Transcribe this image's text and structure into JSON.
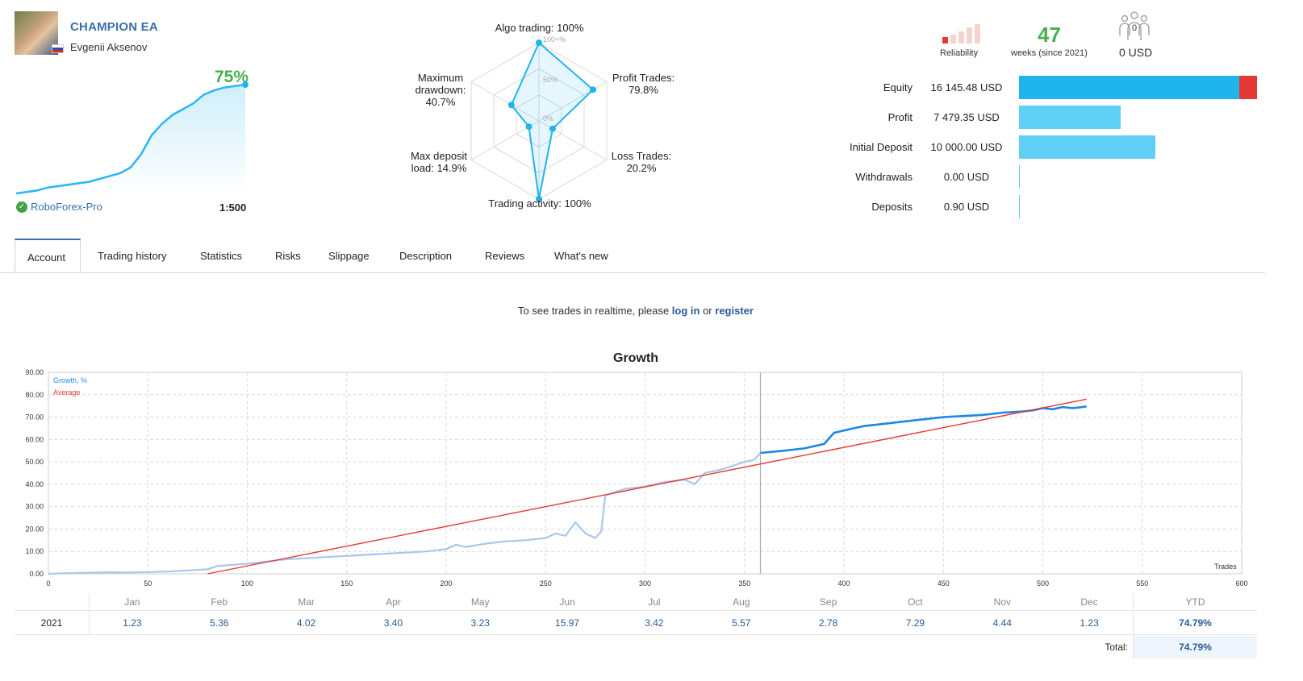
{
  "header": {
    "title": "CHAMPION EA",
    "author": "Evgenii Aksenov",
    "growth_pct": "75%",
    "broker": "RoboForex-Pro",
    "leverage": "1:500"
  },
  "mini_chart_growth": [
    0,
    1,
    2,
    4,
    5,
    6,
    7,
    8,
    10,
    12,
    14,
    18,
    27,
    40,
    48,
    54,
    58,
    62,
    68,
    71,
    73,
    74,
    75
  ],
  "radar": {
    "labels": {
      "algo": "Algo trading: 100%",
      "profit": [
        "Profit Trades:",
        "79.8%"
      ],
      "loss": [
        "Loss Trades:",
        "20.2%"
      ],
      "activity": "Trading activity: 100%",
      "deposit": [
        "Max deposit",
        "load: 14.9%"
      ],
      "drawdown": [
        "Maximum",
        "drawdown:",
        "40.7%"
      ]
    },
    "ring_labels": [
      "100+%",
      "50%",
      "0%"
    ],
    "values": [
      100,
      79.8,
      20.2,
      100,
      14.9,
      40.7
    ]
  },
  "stats": {
    "reliability_label": "Reliability",
    "weeks_value": "47",
    "weeks_label": "weeks (since 2021)",
    "subscribers_count": "0",
    "subscribers_usd": "0 USD",
    "colors": {
      "equity": "#1fb5ec",
      "equity_loss": "#e53935",
      "bar": "#5fcff5",
      "reliability_red": "#e53935",
      "reliability_pale": "#f4c7c3"
    }
  },
  "financials": [
    {
      "label": "Equity",
      "value": "16 145.48 USD",
      "amount": 16145.48
    },
    {
      "label": "Profit",
      "value": "7 479.35 USD",
      "amount": 7479.35
    },
    {
      "label": "Initial Deposit",
      "value": "10 000.00 USD",
      "amount": 10000.0
    },
    {
      "label": "Withdrawals",
      "value": "0.00 USD",
      "amount": 0.0
    },
    {
      "label": "Deposits",
      "value": "0.90 USD",
      "amount": 0.9
    }
  ],
  "tabs": [
    "Account",
    "Trading history",
    "Statistics",
    "Risks",
    "Slippage",
    "Description",
    "Reviews",
    "What's new"
  ],
  "notice": {
    "prefix": "To see trades in realtime, please ",
    "login": "log in",
    "or": " or ",
    "register": "register"
  },
  "chart_data": {
    "type": "line",
    "title": "Growth",
    "xlabel": "Trades",
    "ylabel": "",
    "xlim": [
      0,
      600
    ],
    "ylim": [
      0,
      90
    ],
    "x_ticks": [
      0,
      50,
      100,
      150,
      200,
      250,
      300,
      350,
      400,
      450,
      500,
      550,
      600
    ],
    "y_ticks": [
      "0.00",
      "10.00",
      "20.00",
      "30.00",
      "40.00",
      "50.00",
      "60.00",
      "70.00",
      "80.00",
      "90.00"
    ],
    "grid": true,
    "legend_position": "top-left",
    "vertical_marker_x": 358,
    "series": [
      {
        "name": "Growth, %",
        "color": "#1e88e5",
        "x": [
          0,
          10,
          20,
          30,
          40,
          50,
          60,
          70,
          80,
          85,
          90,
          100,
          105,
          110,
          120,
          130,
          140,
          150,
          160,
          170,
          180,
          190,
          195,
          200,
          205,
          210,
          220,
          225,
          230,
          240,
          250,
          255,
          260,
          265,
          270,
          275,
          278,
          280,
          290,
          300,
          310,
          320,
          325,
          330,
          340,
          350,
          355,
          358,
          370,
          380,
          390,
          395,
          400,
          405,
          410,
          420,
          430,
          440,
          450,
          460,
          470,
          480,
          490,
          495,
          500,
          505,
          510,
          515,
          520,
          522
        ],
        "y": [
          0,
          0.3,
          0.5,
          0.7,
          0.6,
          0.8,
          1.0,
          1.5,
          2.0,
          3.5,
          3.8,
          4.5,
          5.0,
          5.5,
          6.5,
          7.0,
          7.5,
          8.0,
          8.5,
          9.0,
          9.5,
          10.0,
          10.5,
          11,
          13,
          12,
          13.5,
          14,
          14.5,
          15,
          16,
          18,
          17,
          23,
          18,
          16,
          19,
          35,
          38,
          39,
          41,
          42,
          40,
          45,
          47,
          50,
          51,
          54,
          55,
          56,
          58,
          63,
          64,
          65,
          66,
          67,
          68,
          69,
          70,
          70.5,
          71,
          72,
          72.5,
          73,
          74,
          73.5,
          74.5,
          74,
          74.5,
          74.79
        ]
      },
      {
        "name": "Average",
        "color": "#e53935",
        "x": [
          80,
          522
        ],
        "y": [
          0,
          78
        ]
      }
    ]
  },
  "monthly": {
    "months": [
      "Jan",
      "Feb",
      "Mar",
      "Apr",
      "May",
      "Jun",
      "Jul",
      "Aug",
      "Sep",
      "Oct",
      "Nov",
      "Dec"
    ],
    "ytd_label": "YTD",
    "year": "2021",
    "values": [
      "1.23",
      "5.36",
      "4.02",
      "3.40",
      "3.23",
      "15.97",
      "3.42",
      "5.57",
      "2.78",
      "7.29",
      "4.44",
      "1.23"
    ],
    "ytd": "74.79%",
    "total_label": "Total:",
    "total": "74.79%"
  }
}
